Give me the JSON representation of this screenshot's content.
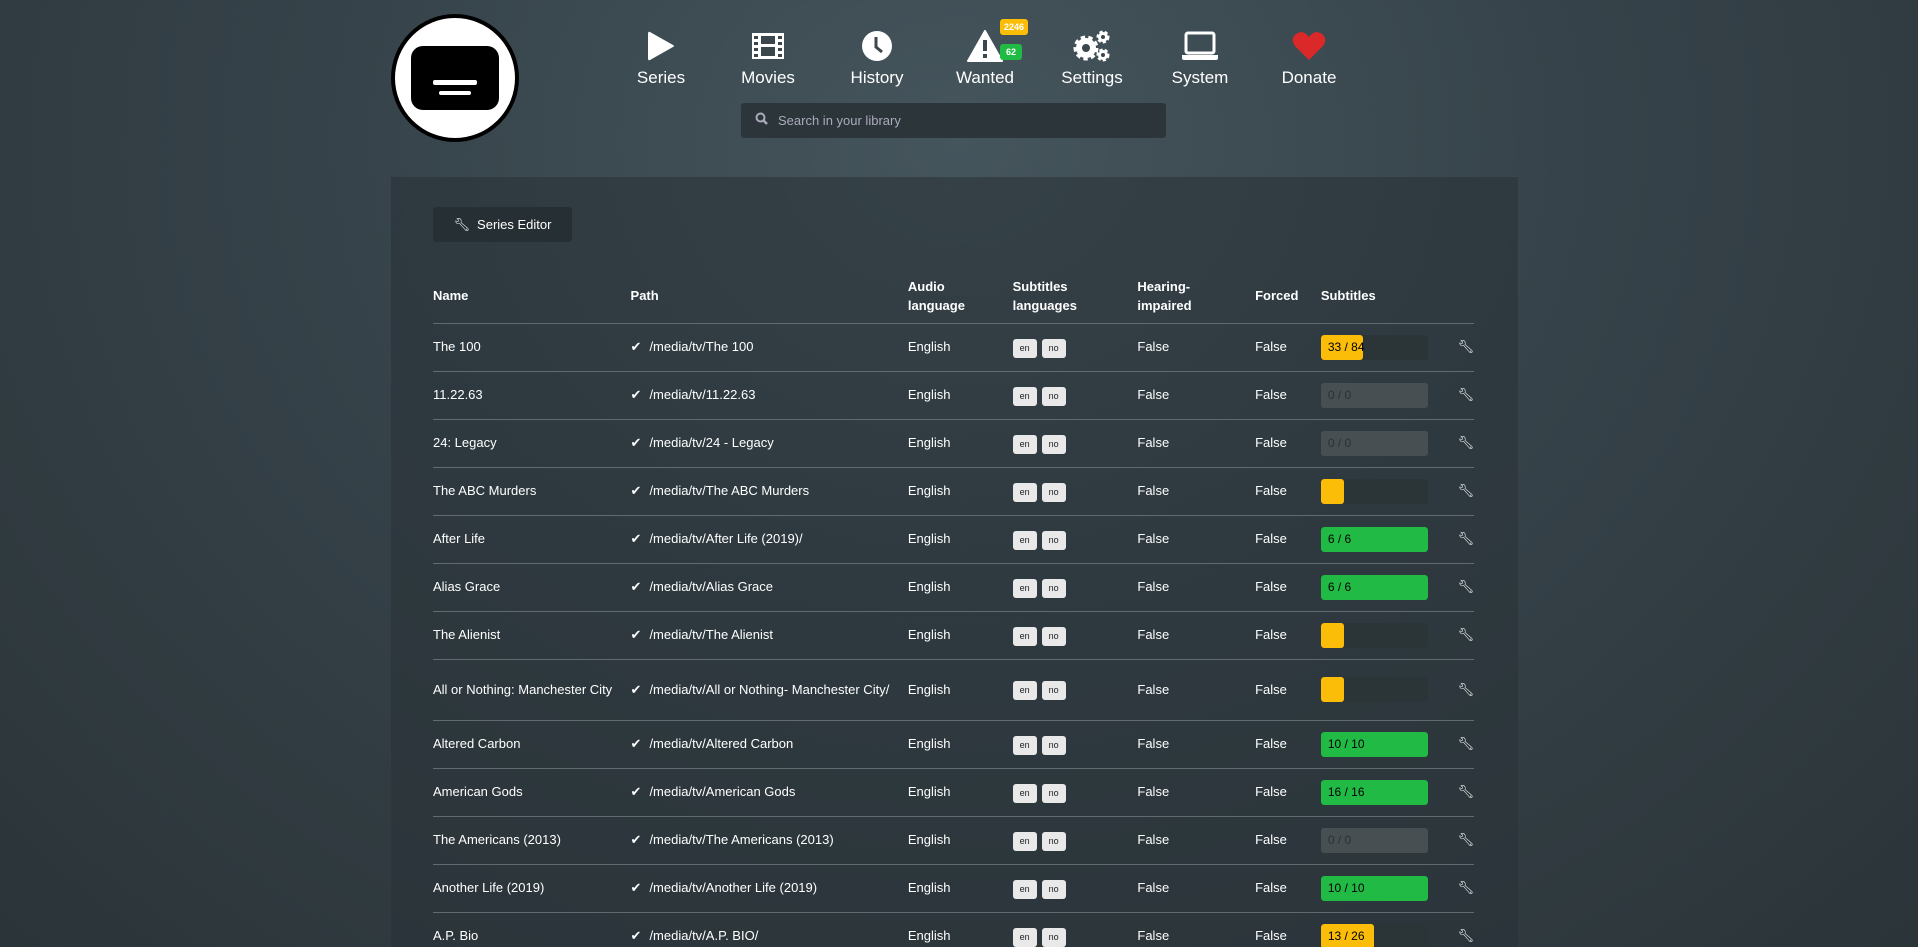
{
  "nav": {
    "items": [
      {
        "label": "Series",
        "icon": "play-icon"
      },
      {
        "label": "Movies",
        "icon": "film-icon"
      },
      {
        "label": "History",
        "icon": "clock-icon"
      },
      {
        "label": "Wanted",
        "icon": "warning-icon"
      },
      {
        "label": "Settings",
        "icon": "gears-icon"
      },
      {
        "label": "System",
        "icon": "laptop-icon"
      },
      {
        "label": "Donate",
        "icon": "heart-icon"
      }
    ],
    "wanted_badges": {
      "series": "2246",
      "movies": "62"
    }
  },
  "search": {
    "placeholder": "Search in your library"
  },
  "series_editor_label": "Series Editor",
  "table": {
    "headers": [
      "Name",
      "Path",
      "Audio language",
      "Subtitles languages",
      "Hearing-impaired",
      "Forced",
      "Subtitles"
    ],
    "rows": [
      {
        "name": "The 100",
        "path": "/media/tv/The 100",
        "audio": "English",
        "langs": [
          "en",
          "no"
        ],
        "hi": "False",
        "forced": "False",
        "subs": "33 / 84",
        "fraction": 0.39,
        "status": "partial"
      },
      {
        "name": "11.22.63",
        "path": "/media/tv/11.22.63",
        "audio": "English",
        "langs": [
          "en",
          "no"
        ],
        "hi": "False",
        "forced": "False",
        "subs": "0 / 0",
        "fraction": 0,
        "status": "empty"
      },
      {
        "name": "24: Legacy",
        "path": "/media/tv/24 - Legacy",
        "audio": "English",
        "langs": [
          "en",
          "no"
        ],
        "hi": "False",
        "forced": "False",
        "subs": "0 / 0",
        "fraction": 0,
        "status": "empty"
      },
      {
        "name": "The ABC Murders",
        "path": "/media/tv/The ABC Murders",
        "audio": "English",
        "langs": [
          "en",
          "no"
        ],
        "hi": "False",
        "forced": "False",
        "subs": "",
        "fraction": 0,
        "status": "partial"
      },
      {
        "name": "After Life",
        "path": "/media/tv/After Life (2019)/",
        "audio": "English",
        "langs": [
          "en",
          "no"
        ],
        "hi": "False",
        "forced": "False",
        "subs": "6 / 6",
        "fraction": 1,
        "status": "complete"
      },
      {
        "name": "Alias Grace",
        "path": "/media/tv/Alias Grace",
        "audio": "English",
        "langs": [
          "en",
          "no"
        ],
        "hi": "False",
        "forced": "False",
        "subs": "6 / 6",
        "fraction": 1,
        "status": "complete"
      },
      {
        "name": "The Alienist",
        "path": "/media/tv/The Alienist",
        "audio": "English",
        "langs": [
          "en",
          "no"
        ],
        "hi": "False",
        "forced": "False",
        "subs": "",
        "fraction": 0,
        "status": "partial"
      },
      {
        "name": "All or Nothing: Manchester City",
        "path": "/media/tv/All or Nothing- Manchester City/",
        "audio": "English",
        "langs": [
          "en",
          "no"
        ],
        "hi": "False",
        "forced": "False",
        "subs": "",
        "fraction": 0,
        "status": "partial"
      },
      {
        "name": "Altered Carbon",
        "path": "/media/tv/Altered Carbon",
        "audio": "English",
        "langs": [
          "en",
          "no"
        ],
        "hi": "False",
        "forced": "False",
        "subs": "10 / 10",
        "fraction": 1,
        "status": "complete"
      },
      {
        "name": "American Gods",
        "path": "/media/tv/American Gods",
        "audio": "English",
        "langs": [
          "en",
          "no"
        ],
        "hi": "False",
        "forced": "False",
        "subs": "16 / 16",
        "fraction": 1,
        "status": "complete"
      },
      {
        "name": "The Americans (2013)",
        "path": "/media/tv/The Americans (2013)",
        "audio": "English",
        "langs": [
          "en",
          "no"
        ],
        "hi": "False",
        "forced": "False",
        "subs": "0 / 0",
        "fraction": 0,
        "status": "empty"
      },
      {
        "name": "Another Life (2019)",
        "path": "/media/tv/Another Life (2019)",
        "audio": "English",
        "langs": [
          "en",
          "no"
        ],
        "hi": "False",
        "forced": "False",
        "subs": "10 / 10",
        "fraction": 1,
        "status": "complete"
      },
      {
        "name": "A.P. Bio",
        "path": "/media/tv/A.P. BIO/",
        "audio": "English",
        "langs": [
          "en",
          "no"
        ],
        "hi": "False",
        "forced": "False",
        "subs": "13 / 26",
        "fraction": 0.5,
        "status": "partial"
      }
    ]
  },
  "colors": {
    "partial": "#fbbd08",
    "complete": "#21ba45",
    "badge_series": "#fbbd08",
    "badge_movies": "#21ba45",
    "heart": "#db2828"
  }
}
